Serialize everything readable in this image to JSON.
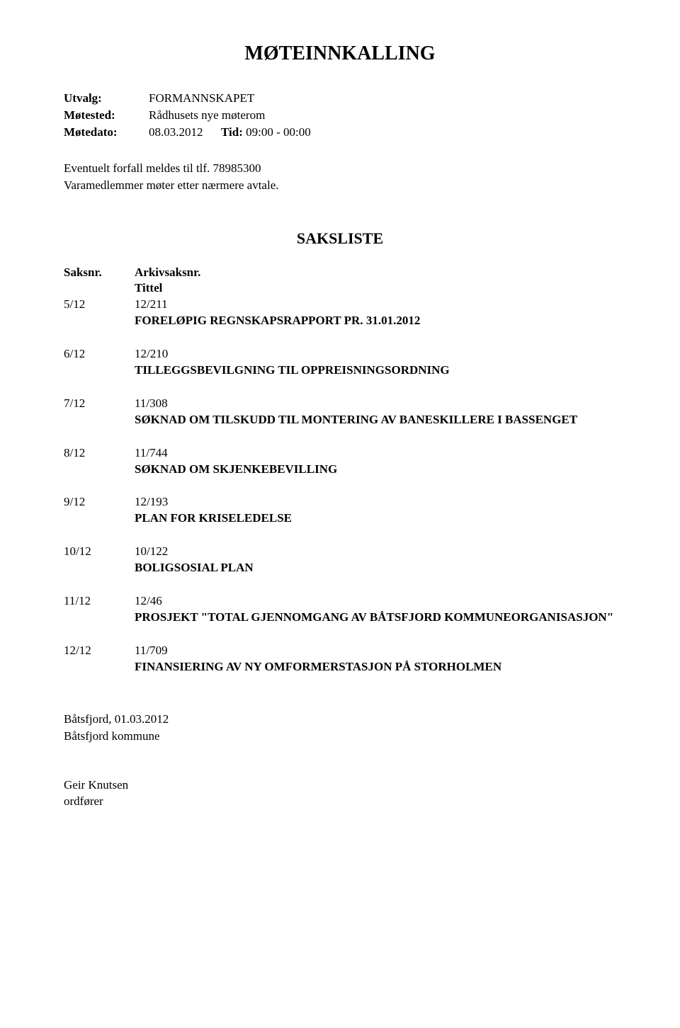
{
  "title": "MØTEINNKALLING",
  "header": {
    "utvalg_label": "Utvalg:",
    "utvalg_value": "FORMANNSKAPET",
    "motested_label": "Møtested:",
    "motested_value": "Rådhusets nye møterom",
    "motedato_label": "Møtedato:",
    "motedato_value": "08.03.2012",
    "tid_label": "Tid:",
    "tid_value": "09:00 - 00:00"
  },
  "forfall": {
    "line1": "Eventuelt forfall meldes til tlf. 78985300",
    "line2": "Varamedlemmer møter etter nærmere avtale."
  },
  "saksliste_title": "SAKSLISTE",
  "columns": {
    "saksnr": "Saksnr.",
    "arkivsaksnr": "Arkivsaksnr.",
    "tittel": "Tittel"
  },
  "cases": [
    {
      "num": "5/12",
      "ref": "12/211",
      "title": "FORELØPIG REGNSKAPSRAPPORT PR. 31.01.2012"
    },
    {
      "num": "6/12",
      "ref": "12/210",
      "title": "TILLEGGSBEVILGNING TIL OPPREISNINGSORDNING"
    },
    {
      "num": "7/12",
      "ref": "11/308",
      "title": "SØKNAD OM TILSKUDD TIL MONTERING AV BANESKILLERE I BASSENGET"
    },
    {
      "num": "8/12",
      "ref": "11/744",
      "title": "SØKNAD OM SKJENKEBEVILLING"
    },
    {
      "num": "9/12",
      "ref": "12/193",
      "title": "PLAN FOR KRISELEDELSE"
    },
    {
      "num": "10/12",
      "ref": "10/122",
      "title": "BOLIGSOSIAL PLAN"
    },
    {
      "num": "11/12",
      "ref": "12/46",
      "title": "PROSJEKT \"TOTAL GJENNOMGANG AV BÅTSFJORD KOMMUNEORGANISASJON\""
    },
    {
      "num": "12/12",
      "ref": "11/709",
      "title": "FINANSIERING AV NY OMFORMERSTASJON PÅ STORHOLMEN"
    }
  ],
  "footer": {
    "place_date": "Båtsfjord, 01.03.2012",
    "kommune": "Båtsfjord kommune"
  },
  "signature": {
    "name": "Geir Knutsen",
    "role": "ordfører"
  }
}
